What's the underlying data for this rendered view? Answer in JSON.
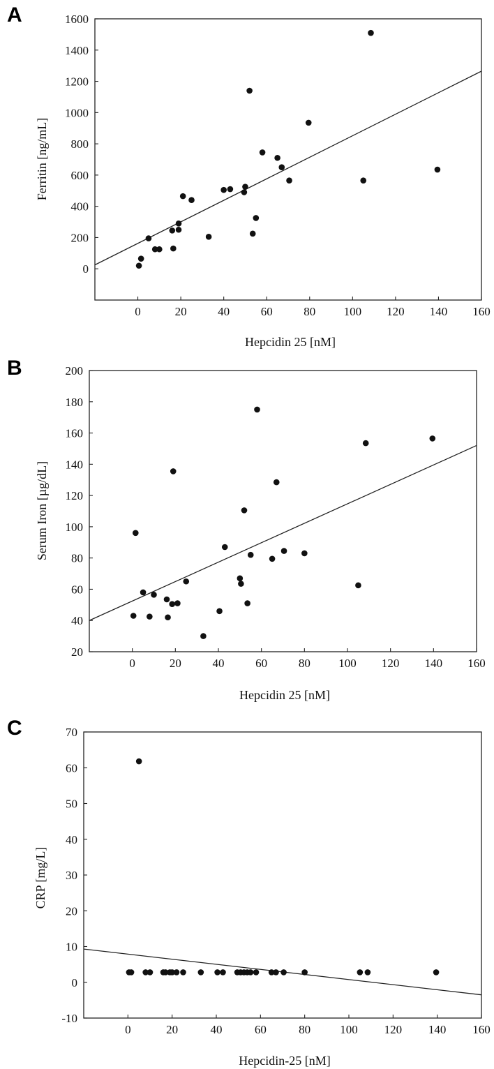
{
  "chart_data": [
    {
      "type": "scatter",
      "panel_label": "A",
      "xlabel": "Hepcidin 25 [nM]",
      "ylabel": "Ferritin [ng/mL]",
      "xlim": [
        -20,
        160
      ],
      "ylim": [
        -200,
        1600
      ],
      "xticks": [
        0,
        20,
        40,
        60,
        80,
        100,
        120,
        140,
        160
      ],
      "yticks": [
        0,
        200,
        400,
        600,
        800,
        1000,
        1200,
        1400,
        1600
      ],
      "points": [
        [
          0.5,
          20
        ],
        [
          1.5,
          65
        ],
        [
          5,
          195
        ],
        [
          8,
          125
        ],
        [
          10,
          125
        ],
        [
          16,
          245
        ],
        [
          16.5,
          130
        ],
        [
          19,
          250
        ],
        [
          19,
          290
        ],
        [
          21,
          465
        ],
        [
          25,
          440
        ],
        [
          33,
          205
        ],
        [
          40,
          505
        ],
        [
          43,
          510
        ],
        [
          49.5,
          490
        ],
        [
          50,
          525
        ],
        [
          52,
          1140
        ],
        [
          53.5,
          225
        ],
        [
          55,
          325
        ],
        [
          58,
          745
        ],
        [
          65,
          710
        ],
        [
          67,
          650
        ],
        [
          70.5,
          565
        ],
        [
          79.5,
          935
        ],
        [
          105,
          565
        ],
        [
          108.5,
          1510
        ],
        [
          139.5,
          635
        ]
      ],
      "trendline": [
        [
          -20,
          25
        ],
        [
          160,
          1265
        ]
      ],
      "grid": false
    },
    {
      "type": "scatter",
      "panel_label": "B",
      "xlabel": "Hepcidin 25 [nM]",
      "ylabel": "Serum Iron [µg/dL]",
      "xlim": [
        -20,
        160
      ],
      "ylim": [
        20,
        200
      ],
      "xticks": [
        0,
        20,
        40,
        60,
        80,
        100,
        120,
        140,
        160
      ],
      "yticks": [
        20,
        40,
        60,
        80,
        100,
        120,
        140,
        160,
        180,
        200
      ],
      "points": [
        [
          0.5,
          43
        ],
        [
          1.5,
          96
        ],
        [
          5,
          58
        ],
        [
          8,
          42.5
        ],
        [
          10,
          56.5
        ],
        [
          16,
          53.5
        ],
        [
          16.5,
          42
        ],
        [
          18.5,
          50.5
        ],
        [
          19,
          135.5
        ],
        [
          21,
          51
        ],
        [
          25,
          65
        ],
        [
          33,
          30
        ],
        [
          40.5,
          46
        ],
        [
          43,
          87
        ],
        [
          50,
          67
        ],
        [
          50.5,
          63.5
        ],
        [
          52,
          110.5
        ],
        [
          53.5,
          51
        ],
        [
          55,
          82
        ],
        [
          58,
          175
        ],
        [
          65,
          79.5
        ],
        [
          67,
          128.5
        ],
        [
          70.5,
          84.5
        ],
        [
          80,
          83
        ],
        [
          105,
          62.5
        ],
        [
          108.5,
          153.5
        ],
        [
          139.5,
          156.5
        ]
      ],
      "trendline": [
        [
          -20,
          40
        ],
        [
          160,
          152
        ]
      ],
      "grid": false
    },
    {
      "type": "scatter",
      "panel_label": "C",
      "xlabel": "Hepcidin-25 [nM]",
      "ylabel": "CRP [mg/L]",
      "xlim": [
        -20,
        160
      ],
      "ylim": [
        -10,
        70
      ],
      "xticks": [
        0,
        20,
        40,
        60,
        80,
        100,
        120,
        140,
        160
      ],
      "yticks": [
        -10,
        0,
        10,
        20,
        30,
        40,
        50,
        60,
        70
      ],
      "points": [
        [
          0.5,
          2.8
        ],
        [
          1.5,
          2.8
        ],
        [
          5,
          61.8
        ],
        [
          8,
          2.8
        ],
        [
          10,
          2.8
        ],
        [
          16,
          2.8
        ],
        [
          17,
          2.8
        ],
        [
          19,
          2.8
        ],
        [
          20,
          2.8
        ],
        [
          22,
          2.8
        ],
        [
          25,
          2.8
        ],
        [
          33,
          2.8
        ],
        [
          40.5,
          2.8
        ],
        [
          43,
          2.8
        ],
        [
          49.5,
          2.8
        ],
        [
          51,
          2.8
        ],
        [
          52.5,
          2.8
        ],
        [
          54,
          2.8
        ],
        [
          55.5,
          2.8
        ],
        [
          58,
          2.8
        ],
        [
          65,
          2.8
        ],
        [
          67,
          2.8
        ],
        [
          70.5,
          2.8
        ],
        [
          80,
          2.8
        ],
        [
          105,
          2.8
        ],
        [
          108.5,
          2.8
        ],
        [
          139.5,
          2.8
        ]
      ],
      "trendline": [
        [
          -20,
          9.3
        ],
        [
          160,
          -3.5
        ]
      ],
      "grid": false
    }
  ]
}
